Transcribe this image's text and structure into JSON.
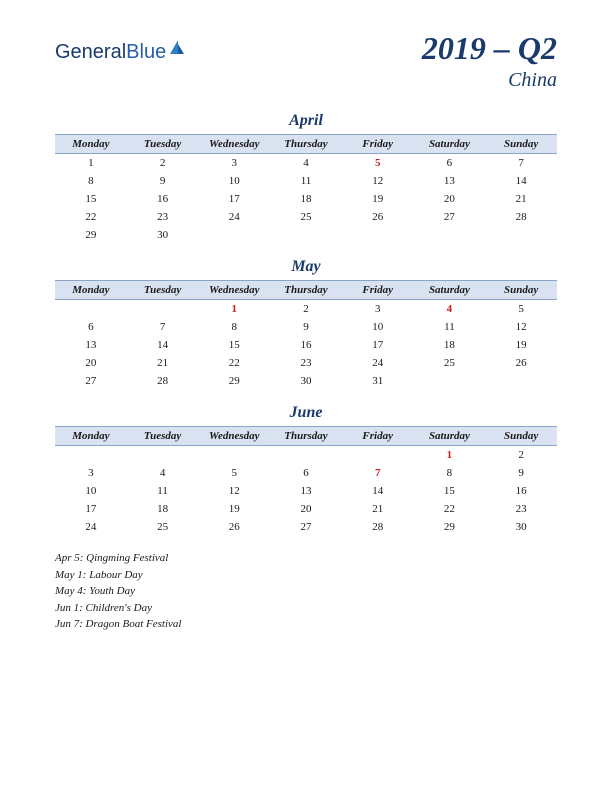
{
  "logo": {
    "text1": "General",
    "text2": "Blue"
  },
  "title": {
    "main": "2019 – Q2",
    "sub": "China"
  },
  "colors": {
    "header_bg": "#d9e2f0",
    "header_border": "#8aa3c8",
    "brand_text": "#1a3a6e",
    "holiday": "#c41e1e",
    "text": "#1a1a1a",
    "bg": "#ffffff"
  },
  "day_headers": [
    "Monday",
    "Tuesday",
    "Wednesday",
    "Thursday",
    "Friday",
    "Saturday",
    "Sunday"
  ],
  "months": [
    {
      "name": "April",
      "weeks": [
        [
          {
            "d": "1"
          },
          {
            "d": "2"
          },
          {
            "d": "3"
          },
          {
            "d": "4"
          },
          {
            "d": "5",
            "h": true
          },
          {
            "d": "6"
          },
          {
            "d": "7"
          }
        ],
        [
          {
            "d": "8"
          },
          {
            "d": "9"
          },
          {
            "d": "10"
          },
          {
            "d": "11"
          },
          {
            "d": "12"
          },
          {
            "d": "13"
          },
          {
            "d": "14"
          }
        ],
        [
          {
            "d": "15"
          },
          {
            "d": "16"
          },
          {
            "d": "17"
          },
          {
            "d": "18"
          },
          {
            "d": "19"
          },
          {
            "d": "20"
          },
          {
            "d": "21"
          }
        ],
        [
          {
            "d": "22"
          },
          {
            "d": "23"
          },
          {
            "d": "24"
          },
          {
            "d": "25"
          },
          {
            "d": "26"
          },
          {
            "d": "27"
          },
          {
            "d": "28"
          }
        ],
        [
          {
            "d": "29"
          },
          {
            "d": "30"
          },
          {
            "d": ""
          },
          {
            "d": ""
          },
          {
            "d": ""
          },
          {
            "d": ""
          },
          {
            "d": ""
          }
        ]
      ]
    },
    {
      "name": "May",
      "weeks": [
        [
          {
            "d": ""
          },
          {
            "d": ""
          },
          {
            "d": "1",
            "h": true
          },
          {
            "d": "2"
          },
          {
            "d": "3"
          },
          {
            "d": "4",
            "h": true
          },
          {
            "d": "5"
          }
        ],
        [
          {
            "d": "6"
          },
          {
            "d": "7"
          },
          {
            "d": "8"
          },
          {
            "d": "9"
          },
          {
            "d": "10"
          },
          {
            "d": "11"
          },
          {
            "d": "12"
          }
        ],
        [
          {
            "d": "13"
          },
          {
            "d": "14"
          },
          {
            "d": "15"
          },
          {
            "d": "16"
          },
          {
            "d": "17"
          },
          {
            "d": "18"
          },
          {
            "d": "19"
          }
        ],
        [
          {
            "d": "20"
          },
          {
            "d": "21"
          },
          {
            "d": "22"
          },
          {
            "d": "23"
          },
          {
            "d": "24"
          },
          {
            "d": "25"
          },
          {
            "d": "26"
          }
        ],
        [
          {
            "d": "27"
          },
          {
            "d": "28"
          },
          {
            "d": "29"
          },
          {
            "d": "30"
          },
          {
            "d": "31"
          },
          {
            "d": ""
          },
          {
            "d": ""
          }
        ]
      ]
    },
    {
      "name": "June",
      "weeks": [
        [
          {
            "d": ""
          },
          {
            "d": ""
          },
          {
            "d": ""
          },
          {
            "d": ""
          },
          {
            "d": ""
          },
          {
            "d": "1",
            "h": true
          },
          {
            "d": "2"
          }
        ],
        [
          {
            "d": "3"
          },
          {
            "d": "4"
          },
          {
            "d": "5"
          },
          {
            "d": "6"
          },
          {
            "d": "7",
            "h": true
          },
          {
            "d": "8"
          },
          {
            "d": "9"
          }
        ],
        [
          {
            "d": "10"
          },
          {
            "d": "11"
          },
          {
            "d": "12"
          },
          {
            "d": "13"
          },
          {
            "d": "14"
          },
          {
            "d": "15"
          },
          {
            "d": "16"
          }
        ],
        [
          {
            "d": "17"
          },
          {
            "d": "18"
          },
          {
            "d": "19"
          },
          {
            "d": "20"
          },
          {
            "d": "21"
          },
          {
            "d": "22"
          },
          {
            "d": "23"
          }
        ],
        [
          {
            "d": "24"
          },
          {
            "d": "25"
          },
          {
            "d": "26"
          },
          {
            "d": "27"
          },
          {
            "d": "28"
          },
          {
            "d": "29"
          },
          {
            "d": "30"
          }
        ]
      ]
    }
  ],
  "holidays": [
    "Apr 5: Qingming Festival",
    "May 1: Labour Day",
    "May 4: Youth Day",
    "Jun 1: Children's Day",
    "Jun 7: Dragon Boat Festival"
  ]
}
